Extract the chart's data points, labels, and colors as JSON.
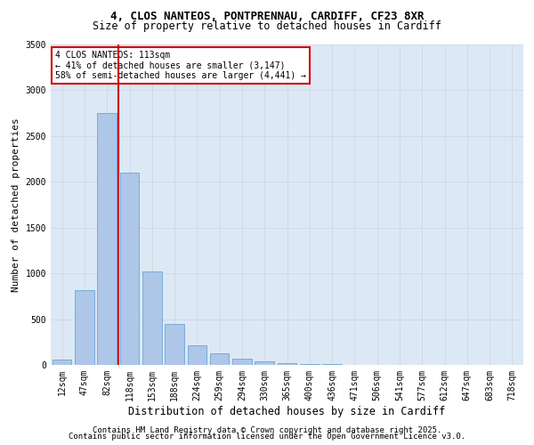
{
  "title_line1": "4, CLOS NANTEOS, PONTPRENNAU, CARDIFF, CF23 8XR",
  "title_line2": "Size of property relative to detached houses in Cardiff",
  "xlabel": "Distribution of detached houses by size in Cardiff",
  "ylabel": "Number of detached properties",
  "categories": [
    "12sqm",
    "47sqm",
    "82sqm",
    "118sqm",
    "153sqm",
    "188sqm",
    "224sqm",
    "259sqm",
    "294sqm",
    "330sqm",
    "365sqm",
    "400sqm",
    "436sqm",
    "471sqm",
    "506sqm",
    "541sqm",
    "577sqm",
    "612sqm",
    "647sqm",
    "683sqm",
    "718sqm"
  ],
  "values": [
    55,
    820,
    2750,
    2100,
    1020,
    450,
    210,
    130,
    70,
    35,
    20,
    10,
    5,
    2,
    1,
    1,
    0,
    0,
    0,
    0,
    0
  ],
  "bar_color": "#aec6e8",
  "bar_edge_color": "#5b9bd5",
  "grid_color": "#d0d8e8",
  "background_color": "#dce9f5",
  "vline_color": "#cc0000",
  "vline_index": 2.5,
  "annotation_text": "4 CLOS NANTEOS: 113sqm\n← 41% of detached houses are smaller (3,147)\n58% of semi-detached houses are larger (4,441) →",
  "annotation_box_color": "#cc0000",
  "ylim": [
    0,
    3500
  ],
  "yticks": [
    0,
    500,
    1000,
    1500,
    2000,
    2500,
    3000,
    3500
  ],
  "footer_line1": "Contains HM Land Registry data © Crown copyright and database right 2025.",
  "footer_line2": "Contains public sector information licensed under the Open Government Licence v3.0.",
  "title_fontsize": 9,
  "subtitle_fontsize": 8.5,
  "tick_fontsize": 7,
  "ylabel_fontsize": 8,
  "xlabel_fontsize": 8.5,
  "annotation_fontsize": 7,
  "footer_fontsize": 6.5
}
